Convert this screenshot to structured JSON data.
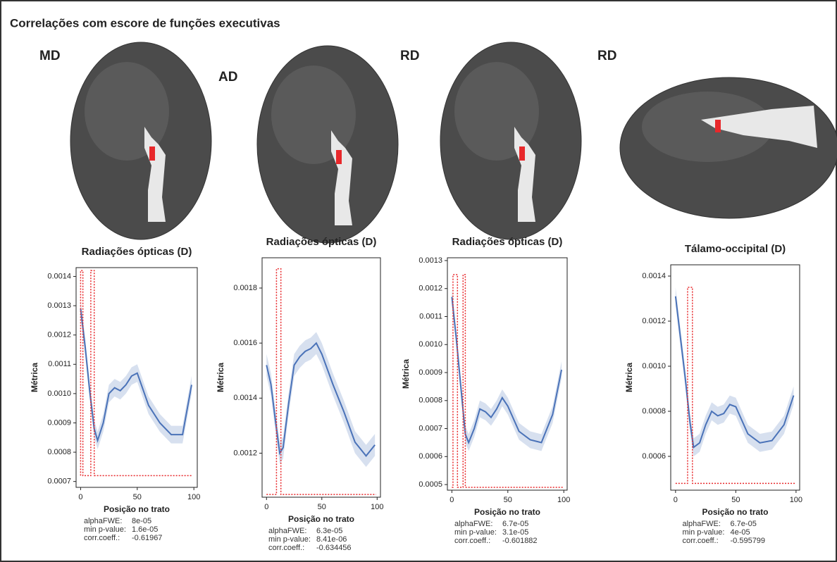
{
  "title": "Correlações com escore de funções executivas",
  "chart_data": [
    {
      "type": "line",
      "panel_label": "MD",
      "title": "Radiações ópticas (D)",
      "xlabel": "Posição no trato",
      "ylabel": "Métrica",
      "xlim": [
        -4,
        103
      ],
      "xticks": [
        0,
        50,
        100
      ],
      "ylim": [
        0.00068,
        0.00143
      ],
      "yticks": [
        0.0007,
        0.0008,
        0.0009,
        {
          "value": 0.001,
          "label": "0.0010"
        },
        0.0011,
        0.0012,
        0.0013,
        0.0014
      ],
      "x": [
        0,
        4,
        8,
        12,
        15,
        20,
        25,
        30,
        35,
        40,
        45,
        50,
        60,
        70,
        80,
        90,
        98
      ],
      "color": "#4a72b8",
      "values": [
        0.00129,
        0.00116,
        0.00101,
        0.00088,
        0.00084,
        0.0009,
        0.001,
        0.00102,
        0.00101,
        0.00103,
        0.00106,
        0.00107,
        0.00096,
        0.0009,
        0.00086,
        0.00086,
        0.00103
      ],
      "error": 3e-05,
      "significance": {
        "color": "#e8282b",
        "x": [
          0,
          0,
          2,
          2,
          9,
          9,
          12,
          12,
          99
        ],
        "values": [
          0.00072,
          0.00142,
          0.00142,
          0.00072,
          0.00072,
          0.00142,
          0.00142,
          0.00072,
          0.00072
        ]
      },
      "stats": [
        {
          "label": "alphaFWE:",
          "value": "8e-05"
        },
        {
          "label": "min p-value:",
          "value": "1.6e-05"
        },
        {
          "label": "corr.coeff.:",
          "value": "-0.61967"
        }
      ]
    },
    {
      "type": "line",
      "panel_label": "AD",
      "title": "Radiações ópticas (D)",
      "xlabel": "Posição no trato",
      "ylabel": "Métrica",
      "xlim": [
        -4,
        103
      ],
      "xticks": [
        0,
        50,
        100
      ],
      "ylim": [
        0.00104,
        0.00191
      ],
      "yticks": [
        0.0012,
        0.0014,
        0.0016,
        0.0018
      ],
      "x": [
        0,
        4,
        8,
        12,
        15,
        20,
        25,
        30,
        35,
        40,
        45,
        50,
        60,
        70,
        80,
        90,
        98
      ],
      "color": "#4a72b8",
      "values": [
        0.00152,
        0.00145,
        0.00132,
        0.0012,
        0.00122,
        0.00138,
        0.00152,
        0.00155,
        0.00157,
        0.00158,
        0.0016,
        0.00156,
        0.00145,
        0.00135,
        0.00124,
        0.00119,
        0.00123
      ],
      "error": 4e-05,
      "significance": {
        "color": "#e8282b",
        "x": [
          0,
          9,
          9,
          13,
          13,
          99
        ],
        "values": [
          0.00105,
          0.00105,
          0.00187,
          0.00187,
          0.00105,
          0.00105
        ]
      },
      "stats": [
        {
          "label": "alphaFWE:",
          "value": "6.3e-05"
        },
        {
          "label": "min p-value:",
          "value": "8.41e-06"
        },
        {
          "label": "corr.coeff.:",
          "value": "-0.634456"
        }
      ]
    },
    {
      "type": "line",
      "panel_label": "RD",
      "title": "Radiações ópticas (D)",
      "xlabel": "Posição no trato",
      "ylabel": "Métrica",
      "xlim": [
        -4,
        103
      ],
      "xticks": [
        0,
        50,
        100
      ],
      "ylim": [
        0.00048,
        0.00131
      ],
      "yticks": [
        0.0005,
        0.0006,
        0.0007,
        0.0008,
        0.0009,
        {
          "value": 0.001,
          "label": "0.0010"
        },
        0.0011,
        0.0012,
        0.0013
      ],
      "x": [
        0,
        4,
        8,
        12,
        15,
        20,
        25,
        30,
        35,
        40,
        45,
        50,
        60,
        70,
        80,
        90,
        98
      ],
      "color": "#4a72b8",
      "values": [
        0.00117,
        0.00102,
        0.00085,
        0.00068,
        0.00065,
        0.0007,
        0.00077,
        0.00076,
        0.00074,
        0.00077,
        0.00081,
        0.00078,
        0.00069,
        0.00066,
        0.00065,
        0.00075,
        0.00091
      ],
      "error": 3e-05,
      "significance": {
        "color": "#e8282b",
        "x": [
          0,
          1,
          1,
          5,
          5,
          10,
          10,
          12,
          12,
          99
        ],
        "values": [
          0.00049,
          0.00049,
          0.00125,
          0.00125,
          0.00049,
          0.00049,
          0.00125,
          0.00125,
          0.00049,
          0.00049
        ]
      },
      "stats": [
        {
          "label": "alphaFWE:",
          "value": "6.7e-05"
        },
        {
          "label": "min p-value:",
          "value": "3.1e-05"
        },
        {
          "label": "corr.coeff.:",
          "value": "-0.601882"
        }
      ]
    },
    {
      "type": "line",
      "panel_label": "RD",
      "title": "Tálamo-occipital (D)",
      "xlabel": "Posição no trato",
      "ylabel": "Métrica",
      "xlim": [
        -4,
        103
      ],
      "xticks": [
        0,
        50,
        100
      ],
      "ylim": [
        0.00045,
        0.00145
      ],
      "yticks": [
        0.0006,
        0.0008,
        {
          "value": 0.001,
          "label": "0.0010"
        },
        0.0012,
        0.0014
      ],
      "x": [
        0,
        4,
        8,
        12,
        15,
        20,
        25,
        30,
        35,
        40,
        45,
        50,
        60,
        70,
        80,
        90,
        98
      ],
      "color": "#4a72b8",
      "values": [
        0.00131,
        0.00113,
        0.00095,
        0.00075,
        0.00064,
        0.00066,
        0.00074,
        0.0008,
        0.00078,
        0.00079,
        0.00083,
        0.00082,
        0.0007,
        0.00066,
        0.00067,
        0.00074,
        0.00087
      ],
      "error": 4e-05,
      "significance": {
        "color": "#e8282b",
        "x": [
          0,
          10,
          10,
          14,
          14,
          99
        ],
        "values": [
          0.00048,
          0.00048,
          0.00135,
          0.00135,
          0.00048,
          0.00048
        ]
      },
      "stats": [
        {
          "label": "alphaFWE:",
          "value": "6.7e-05"
        },
        {
          "label": "min p-value:",
          "value": "4e-05"
        },
        {
          "label": "corr.coeff.:",
          "value": "-0.595799"
        }
      ]
    }
  ]
}
